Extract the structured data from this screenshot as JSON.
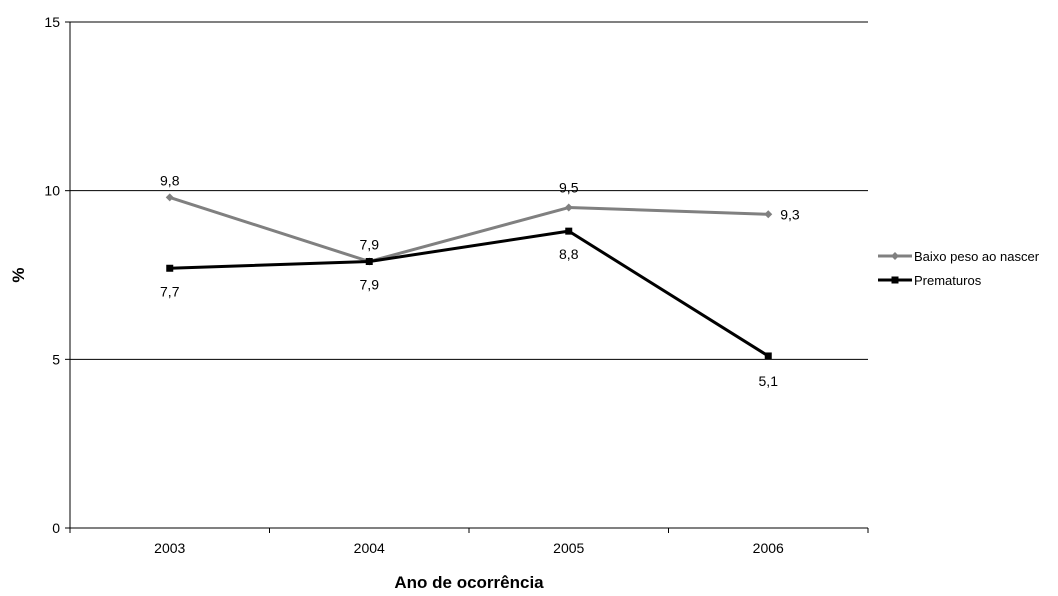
{
  "chart_data": {
    "type": "line",
    "title": "",
    "xlabel": "Ano de ocorrência",
    "ylabel": "%",
    "categories": [
      "2003",
      "2004",
      "2005",
      "2006"
    ],
    "ylim": [
      0,
      15
    ],
    "yticks": [
      0,
      5,
      10,
      15
    ],
    "grid": "horizontal lines at 5 and 10",
    "legend_position": "right",
    "series": [
      {
        "name": "Baixo peso ao nascer",
        "values": [
          9.8,
          7.9,
          9.5,
          9.3
        ],
        "labels": [
          "9,8",
          "7,9",
          "9,5",
          "9,3"
        ],
        "color": "#808080",
        "marker": "diamond"
      },
      {
        "name": "Prematuros",
        "values": [
          7.7,
          7.9,
          8.8,
          5.1
        ],
        "labels": [
          "7,7",
          "7,9",
          "8,8",
          "5,1"
        ],
        "color": "#000000",
        "marker": "square"
      }
    ]
  }
}
